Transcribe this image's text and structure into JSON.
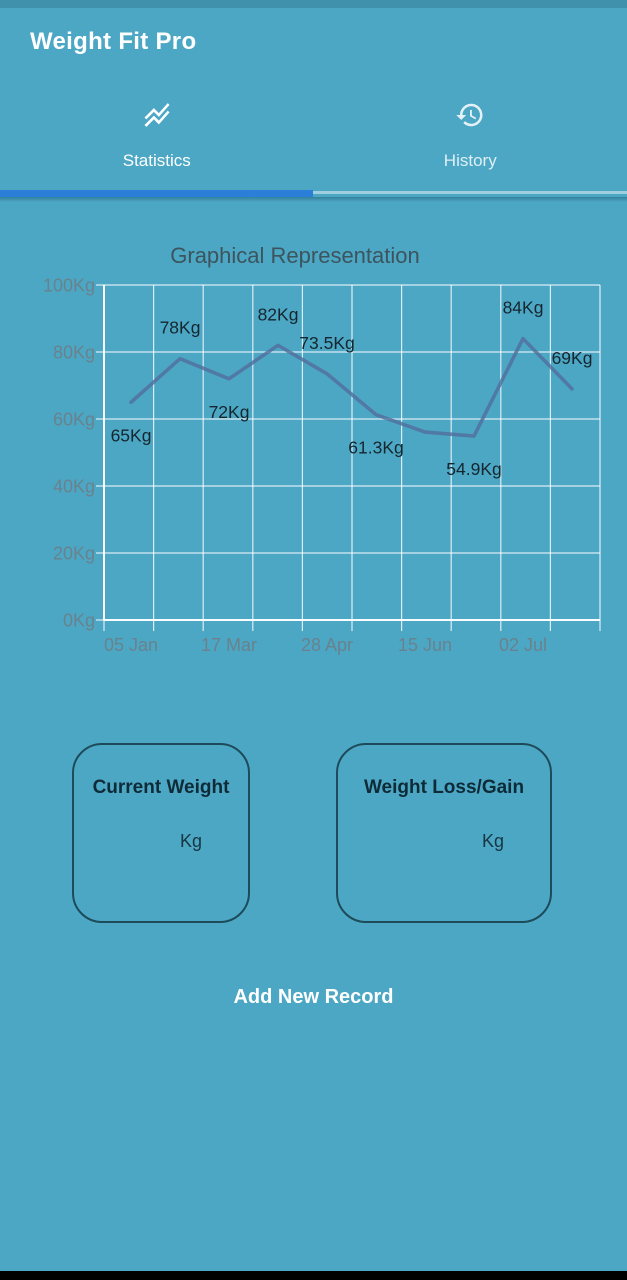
{
  "header": {
    "title": "Weight Fit Pro"
  },
  "tabs": [
    {
      "label": "Statistics",
      "icon": "stacked-line-chart-icon",
      "active": true
    },
    {
      "label": "History",
      "icon": "history-icon",
      "active": false
    }
  ],
  "chart_data": {
    "type": "line",
    "title": "Graphical Representation",
    "unit": "Kg",
    "ylim": [
      0,
      100
    ],
    "grid": true,
    "legend": false,
    "y_ticks": [
      "100Kg",
      "80Kg",
      "60Kg",
      "40Kg",
      "20Kg",
      "0Kg"
    ],
    "x_ticks": [
      "05 Jan",
      "17 Mar",
      "28 Apr",
      "15 Jun",
      "02 Jul"
    ],
    "points": [
      {
        "value": 65,
        "label": "65Kg"
      },
      {
        "value": 78,
        "label": "78Kg"
      },
      {
        "value": 72,
        "label": "72Kg"
      },
      {
        "value": 82,
        "label": "82Kg"
      },
      {
        "value": 73.5,
        "label": "73.5Kg"
      },
      {
        "value": 61.3,
        "label": "61.3Kg"
      },
      {
        "value": 56.1,
        "label": null
      },
      {
        "value": 54.9,
        "label": "54.9Kg"
      },
      {
        "value": 84,
        "label": "84Kg"
      },
      {
        "value": 69,
        "label": "69Kg"
      }
    ]
  },
  "cards": [
    {
      "title": "Current Weight",
      "value": "",
      "unit": "Kg"
    },
    {
      "title": "Weight Loss/Gain",
      "value": "",
      "unit": "Kg"
    }
  ],
  "actions": {
    "add_new_record": "Add New Record"
  },
  "colors": {
    "background": "#4CA7C5",
    "tab_indicator": "#2B7FD9",
    "chart_line": "#52709E",
    "grid_line": "#FFFFFF",
    "axis_label": "#69828D",
    "value_label": "#15262E",
    "title_text": "#3C545D",
    "card_border": "#1D4B59",
    "card_title": "#0E2B37",
    "header_text": "#FFFFFF",
    "bottom_bar": "#000000"
  }
}
